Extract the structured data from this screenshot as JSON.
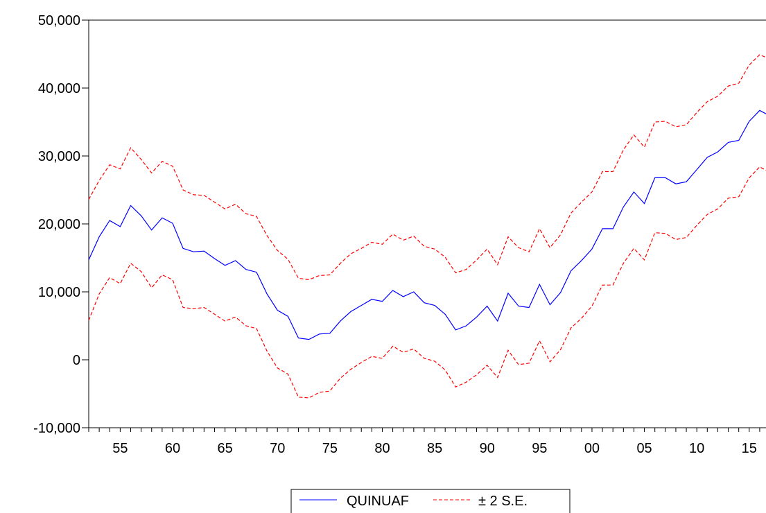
{
  "chart_data": {
    "type": "line",
    "title": "",
    "xlabel": "",
    "ylabel": "",
    "ylim": [
      -10000,
      50000
    ],
    "xlim": [
      1952,
      2016.6
    ],
    "yticks": [
      -10000,
      0,
      10000,
      20000,
      30000,
      40000,
      50000
    ],
    "ytick_labels": [
      "-10,000",
      "0",
      "10,000",
      "20,000",
      "30,000",
      "40,000",
      "50,000"
    ],
    "xticks": [
      1955,
      1960,
      1965,
      1970,
      1975,
      1980,
      1985,
      1990,
      1995,
      2000,
      2005,
      2010,
      2015
    ],
    "xtick_labels": [
      "55",
      "60",
      "65",
      "70",
      "75",
      "80",
      "85",
      "90",
      "95",
      "00",
      "05",
      "10",
      "15"
    ],
    "grid": false,
    "legend_position": "bottom-center",
    "x": [
      1952,
      1953,
      1954,
      1955,
      1956,
      1957,
      1958,
      1959,
      1960,
      1961,
      1962,
      1963,
      1964,
      1965,
      1966,
      1967,
      1968,
      1969,
      1970,
      1971,
      1972,
      1973,
      1974,
      1975,
      1976,
      1977,
      1978,
      1979,
      1980,
      1981,
      1982,
      1983,
      1984,
      1985,
      1986,
      1987,
      1988,
      1989,
      1990,
      1991,
      1992,
      1993,
      1994,
      1995,
      1996,
      1997,
      1998,
      1999,
      2000,
      2001,
      2002,
      2003,
      2004,
      2005,
      2006,
      2007,
      2008,
      2009,
      2010,
      2011,
      2012,
      2013,
      2014,
      2015,
      2016,
      2016.6
    ],
    "series": [
      {
        "name": "QUINUAF",
        "color": "#0000ff",
        "dash": "solid",
        "values": [
          14700,
          18100,
          20500,
          19600,
          22700,
          21200,
          19100,
          20900,
          20100,
          16400,
          15900,
          16000,
          14900,
          13900,
          14600,
          13300,
          12900,
          9700,
          7300,
          6400,
          3200,
          3000,
          3800,
          3900,
          5700,
          7100,
          8000,
          8900,
          8600,
          10200,
          9300,
          10000,
          8400,
          8000,
          6700,
          4400,
          5000,
          6300,
          7900,
          5700,
          9800,
          7900,
          7700,
          11100,
          8100,
          9900,
          13100,
          14600,
          16300,
          19300,
          19300,
          22500,
          24700,
          23000,
          26800,
          26800,
          25900,
          26200,
          28000,
          29800,
          30600,
          32000,
          32300,
          35100,
          36700,
          36200
        ]
      },
      {
        "name": "± 2 S.E.",
        "color": "#ff0000",
        "dash": "dashed",
        "values": [
          23600,
          26400,
          28700,
          28100,
          31200,
          29500,
          27500,
          29200,
          28500,
          25000,
          24300,
          24200,
          23200,
          22200,
          22900,
          21500,
          21100,
          18300,
          16100,
          14800,
          12000,
          11800,
          12400,
          12500,
          14200,
          15600,
          16400,
          17300,
          17000,
          18500,
          17600,
          18200,
          16700,
          16300,
          15100,
          12800,
          13300,
          14700,
          16300,
          14000,
          18100,
          16500,
          15900,
          19300,
          16500,
          18400,
          21600,
          23200,
          24700,
          27700,
          27700,
          30900,
          33100,
          31300,
          35000,
          35100,
          34300,
          34600,
          36400,
          38000,
          38800,
          40300,
          40700,
          43400,
          44900,
          44500
        ]
      },
      {
        "name": "",
        "color": "#ff0000",
        "dash": "dashed",
        "values": [
          5800,
          9700,
          12100,
          11200,
          14200,
          13000,
          10600,
          12500,
          11800,
          7700,
          7500,
          7700,
          6700,
          5700,
          6300,
          5000,
          4600,
          1300,
          -1200,
          -2100,
          -5500,
          -5600,
          -4800,
          -4600,
          -2700,
          -1400,
          -400,
          500,
          200,
          2000,
          1100,
          1600,
          200,
          -200,
          -1500,
          -4000,
          -3300,
          -2200,
          -800,
          -2600,
          1400,
          -700,
          -500,
          2800,
          -300,
          1500,
          4700,
          6100,
          7900,
          11000,
          11000,
          14200,
          16400,
          14700,
          18700,
          18600,
          17700,
          18000,
          19800,
          21400,
          22200,
          23800,
          24000,
          26800,
          28400,
          27900
        ]
      }
    ]
  }
}
